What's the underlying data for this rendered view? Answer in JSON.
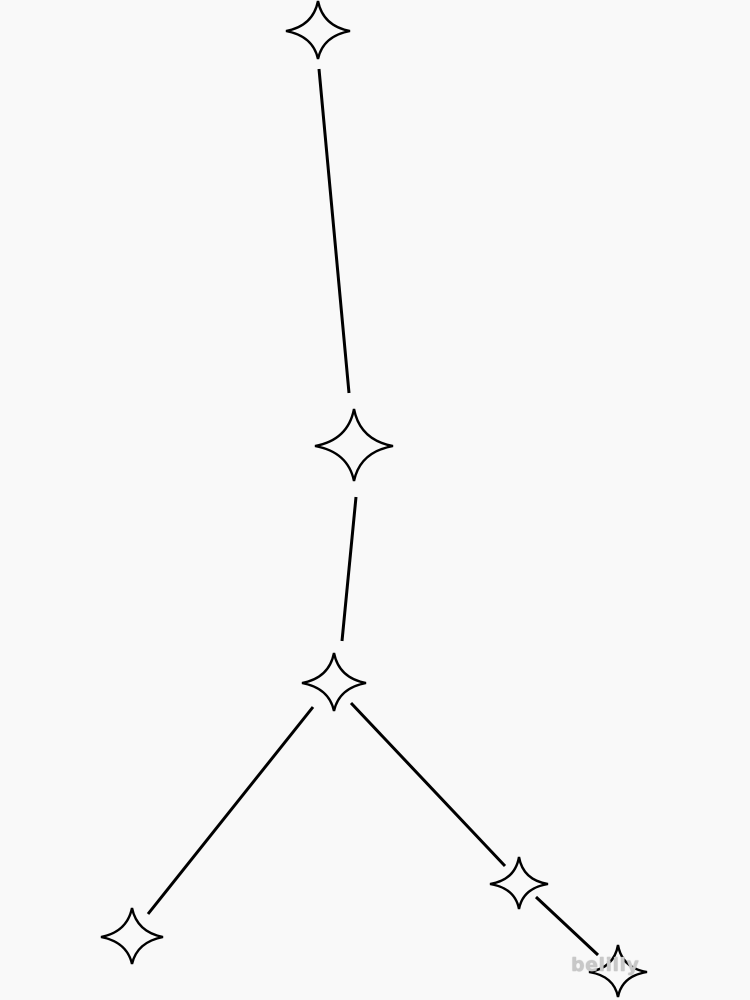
{
  "colors": {
    "background": "#f9f9f9",
    "stroke": "#000000",
    "watermark": "#c8c8c8"
  },
  "watermark": {
    "text": "belilly"
  }
}
